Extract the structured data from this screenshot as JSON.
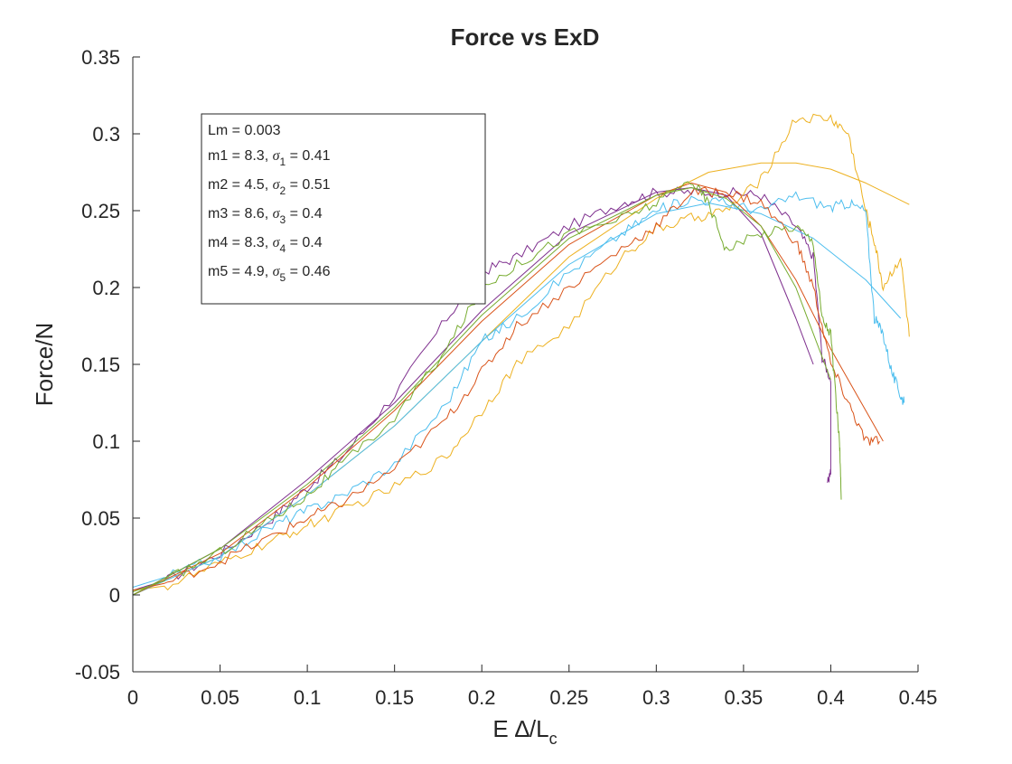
{
  "chart_data": {
    "type": "line",
    "title": "Force vs ExD",
    "xlabel": {
      "main": "E ∆/L",
      "subscript": "c"
    },
    "ylabel": "Force/N",
    "xlim": [
      0,
      0.45
    ],
    "ylim": [
      -0.05,
      0.35
    ],
    "xticks": [
      0,
      0.05,
      0.1,
      0.15,
      0.2,
      0.25,
      0.3,
      0.35,
      0.4,
      0.45
    ],
    "xtick_labels": [
      "0",
      "0.05",
      "0.1",
      "0.15",
      "0.2",
      "0.25",
      "0.3",
      "0.35",
      "0.4",
      "0.45"
    ],
    "yticks": [
      -0.05,
      0,
      0.05,
      0.1,
      0.15,
      0.2,
      0.25,
      0.3,
      0.35
    ],
    "ytick_labels": [
      "-0.05",
      "0",
      "0.05",
      "0.1",
      "0.15",
      "0.2",
      "0.25",
      "0.3",
      "0.35"
    ],
    "grid": false,
    "annotation_box": {
      "placement": "top-left",
      "header": "Lm = 0.003",
      "entries": [
        {
          "m": "m1 = 8.3, ",
          "sigma_sub": "1",
          "sigma_val": " = 0.41"
        },
        {
          "m": "m2 = 4.5, ",
          "sigma_sub": "2",
          "sigma_val": " = 0.51"
        },
        {
          "m": "m3 = 8.6, ",
          "sigma_sub": "3",
          "sigma_val": " = 0.4"
        },
        {
          "m": "m4 = 8.3, ",
          "sigma_sub": "4",
          "sigma_val": " = 0.4"
        },
        {
          "m": "m5 = 4.9, ",
          "sigma_sub": "5",
          "sigma_val": " = 0.46"
        }
      ]
    },
    "series": [
      {
        "color": "#7E2F8E",
        "measured": [
          [
            0,
            0.003
          ],
          [
            0.02,
            0.01
          ],
          [
            0.05,
            0.027
          ],
          [
            0.08,
            0.05
          ],
          [
            0.1,
            0.07
          ],
          [
            0.12,
            0.09
          ],
          [
            0.15,
            0.13
          ],
          [
            0.18,
            0.18
          ],
          [
            0.2,
            0.21
          ],
          [
            0.22,
            0.22
          ],
          [
            0.25,
            0.24
          ],
          [
            0.28,
            0.255
          ],
          [
            0.3,
            0.262
          ],
          [
            0.32,
            0.262
          ],
          [
            0.34,
            0.262
          ],
          [
            0.36,
            0.26
          ],
          [
            0.38,
            0.24
          ],
          [
            0.39,
            0.22
          ],
          [
            0.395,
            0.155
          ],
          [
            0.4,
            0.14
          ],
          [
            0.4,
            0.08
          ],
          [
            0.398,
            0.073
          ]
        ],
        "fit": [
          [
            0,
            0
          ],
          [
            0.05,
            0.03
          ],
          [
            0.1,
            0.075
          ],
          [
            0.15,
            0.125
          ],
          [
            0.2,
            0.185
          ],
          [
            0.25,
            0.235
          ],
          [
            0.3,
            0.262
          ],
          [
            0.32,
            0.265
          ],
          [
            0.34,
            0.26
          ],
          [
            0.36,
            0.235
          ],
          [
            0.38,
            0.18
          ],
          [
            0.39,
            0.15
          ]
        ]
      },
      {
        "color": "#EDB120",
        "measured": [
          [
            0,
            0.003
          ],
          [
            0.02,
            0.006
          ],
          [
            0.05,
            0.02
          ],
          [
            0.08,
            0.035
          ],
          [
            0.1,
            0.045
          ],
          [
            0.12,
            0.055
          ],
          [
            0.15,
            0.07
          ],
          [
            0.18,
            0.09
          ],
          [
            0.2,
            0.12
          ],
          [
            0.22,
            0.15
          ],
          [
            0.25,
            0.175
          ],
          [
            0.28,
            0.22
          ],
          [
            0.3,
            0.238
          ],
          [
            0.32,
            0.245
          ],
          [
            0.34,
            0.25
          ],
          [
            0.36,
            0.27
          ],
          [
            0.38,
            0.31
          ],
          [
            0.4,
            0.31
          ],
          [
            0.41,
            0.3
          ],
          [
            0.42,
            0.25
          ],
          [
            0.425,
            0.23
          ],
          [
            0.43,
            0.2
          ],
          [
            0.44,
            0.22
          ],
          [
            0.445,
            0.168
          ]
        ],
        "fit": [
          [
            0,
            0
          ],
          [
            0.05,
            0.025
          ],
          [
            0.1,
            0.065
          ],
          [
            0.15,
            0.11
          ],
          [
            0.2,
            0.165
          ],
          [
            0.25,
            0.22
          ],
          [
            0.3,
            0.258
          ],
          [
            0.33,
            0.275
          ],
          [
            0.36,
            0.281
          ],
          [
            0.38,
            0.281
          ],
          [
            0.4,
            0.277
          ],
          [
            0.42,
            0.268
          ],
          [
            0.445,
            0.254
          ]
        ]
      },
      {
        "color": "#4DBEEE",
        "measured": [
          [
            0,
            0.005
          ],
          [
            0.02,
            0.012
          ],
          [
            0.05,
            0.025
          ],
          [
            0.08,
            0.045
          ],
          [
            0.1,
            0.055
          ],
          [
            0.12,
            0.065
          ],
          [
            0.15,
            0.085
          ],
          [
            0.18,
            0.125
          ],
          [
            0.2,
            0.165
          ],
          [
            0.22,
            0.18
          ],
          [
            0.25,
            0.21
          ],
          [
            0.28,
            0.235
          ],
          [
            0.3,
            0.25
          ],
          [
            0.32,
            0.258
          ],
          [
            0.34,
            0.255
          ],
          [
            0.36,
            0.25
          ],
          [
            0.38,
            0.26
          ],
          [
            0.4,
            0.252
          ],
          [
            0.41,
            0.255
          ],
          [
            0.42,
            0.25
          ],
          [
            0.425,
            0.18
          ],
          [
            0.43,
            0.17
          ],
          [
            0.435,
            0.145
          ],
          [
            0.44,
            0.13
          ],
          [
            0.442,
            0.125
          ]
        ],
        "fit": [
          [
            0,
            0
          ],
          [
            0.05,
            0.025
          ],
          [
            0.1,
            0.065
          ],
          [
            0.15,
            0.11
          ],
          [
            0.2,
            0.165
          ],
          [
            0.25,
            0.215
          ],
          [
            0.3,
            0.248
          ],
          [
            0.33,
            0.255
          ],
          [
            0.36,
            0.248
          ],
          [
            0.39,
            0.232
          ],
          [
            0.42,
            0.205
          ],
          [
            0.44,
            0.18
          ]
        ]
      },
      {
        "color": "#D95319",
        "measured": [
          [
            0,
            0.003
          ],
          [
            0.02,
            0.008
          ],
          [
            0.05,
            0.022
          ],
          [
            0.08,
            0.038
          ],
          [
            0.1,
            0.05
          ],
          [
            0.12,
            0.06
          ],
          [
            0.15,
            0.082
          ],
          [
            0.18,
            0.115
          ],
          [
            0.2,
            0.145
          ],
          [
            0.22,
            0.175
          ],
          [
            0.25,
            0.2
          ],
          [
            0.28,
            0.225
          ],
          [
            0.3,
            0.24
          ],
          [
            0.32,
            0.262
          ],
          [
            0.34,
            0.262
          ],
          [
            0.36,
            0.255
          ],
          [
            0.38,
            0.23
          ],
          [
            0.39,
            0.2
          ],
          [
            0.4,
            0.15
          ],
          [
            0.41,
            0.125
          ],
          [
            0.42,
            0.1
          ],
          [
            0.428,
            0.1
          ]
        ],
        "fit": [
          [
            0,
            0
          ],
          [
            0.05,
            0.027
          ],
          [
            0.1,
            0.07
          ],
          [
            0.15,
            0.12
          ],
          [
            0.2,
            0.178
          ],
          [
            0.25,
            0.228
          ],
          [
            0.3,
            0.26
          ],
          [
            0.32,
            0.268
          ],
          [
            0.34,
            0.262
          ],
          [
            0.36,
            0.24
          ],
          [
            0.38,
            0.205
          ],
          [
            0.4,
            0.16
          ],
          [
            0.42,
            0.12
          ],
          [
            0.43,
            0.1
          ]
        ]
      },
      {
        "color": "#77AC30",
        "measured": [
          [
            0,
            0.002
          ],
          [
            0.02,
            0.01
          ],
          [
            0.05,
            0.028
          ],
          [
            0.08,
            0.05
          ],
          [
            0.1,
            0.065
          ],
          [
            0.12,
            0.085
          ],
          [
            0.15,
            0.115
          ],
          [
            0.18,
            0.16
          ],
          [
            0.2,
            0.2
          ],
          [
            0.22,
            0.215
          ],
          [
            0.25,
            0.235
          ],
          [
            0.28,
            0.245
          ],
          [
            0.3,
            0.255
          ],
          [
            0.32,
            0.27
          ],
          [
            0.33,
            0.255
          ],
          [
            0.34,
            0.225
          ],
          [
            0.36,
            0.235
          ],
          [
            0.38,
            0.24
          ],
          [
            0.39,
            0.23
          ],
          [
            0.395,
            0.18
          ],
          [
            0.4,
            0.17
          ],
          [
            0.402,
            0.14
          ],
          [
            0.405,
            0.1
          ],
          [
            0.406,
            0.062
          ]
        ],
        "fit": [
          [
            0,
            0
          ],
          [
            0.05,
            0.03
          ],
          [
            0.1,
            0.072
          ],
          [
            0.15,
            0.122
          ],
          [
            0.2,
            0.182
          ],
          [
            0.25,
            0.232
          ],
          [
            0.3,
            0.26
          ],
          [
            0.32,
            0.265
          ],
          [
            0.34,
            0.258
          ],
          [
            0.36,
            0.24
          ],
          [
            0.38,
            0.2
          ],
          [
            0.4,
            0.14
          ]
        ]
      }
    ]
  }
}
